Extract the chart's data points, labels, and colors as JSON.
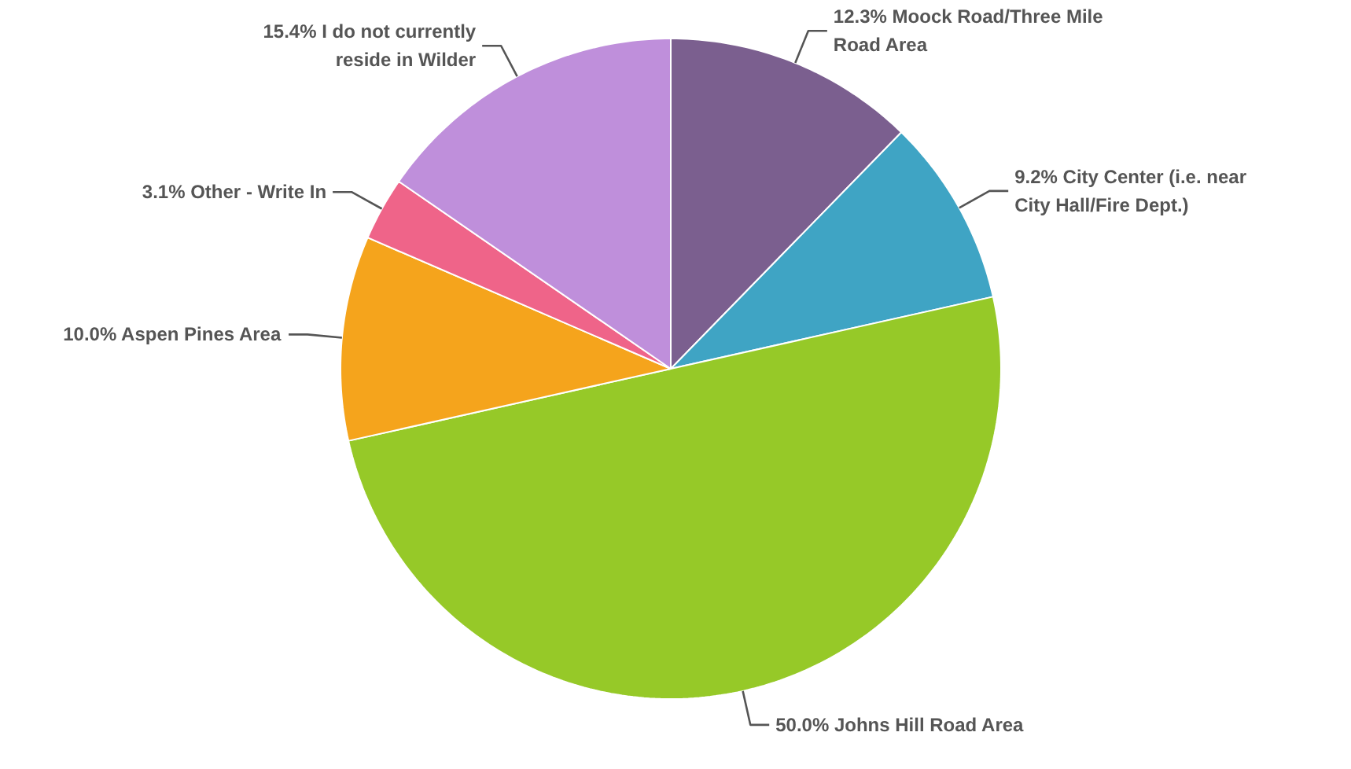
{
  "chart_data": {
    "type": "pie",
    "categories": [
      "Moock Road/Three Mile Road Area",
      "City Center (i.e. near City Hall/Fire Dept.)",
      "Johns Hill Road Area",
      "Aspen Pines Area",
      "Other - Write In",
      "I do not currently reside in Wilder"
    ],
    "values": [
      12.3,
      9.2,
      50.0,
      10.0,
      3.1,
      15.4
    ],
    "value_labels": [
      "12.3%",
      "9.2%",
      "50.0%",
      "10.0%",
      "3.1%",
      "15.4%"
    ],
    "colors": [
      "#7b5f8f",
      "#3fa4c4",
      "#96c928",
      "#f5a41c",
      "#ef6489",
      "#bf8fdb"
    ],
    "legend": false
  }
}
